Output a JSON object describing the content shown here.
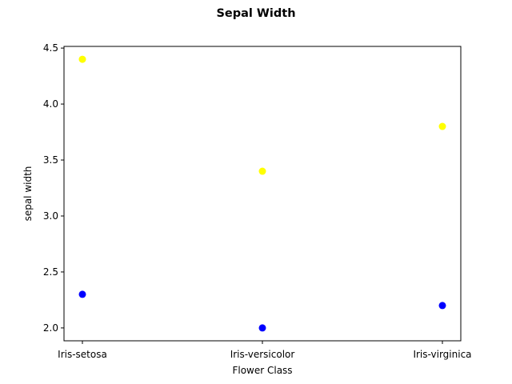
{
  "chart_data": {
    "type": "scatter",
    "title": "Sepal Width",
    "xlabel": "Flower Class",
    "ylabel": "sepal width",
    "categories": [
      "Iris-setosa",
      "Iris-versicolor",
      "Iris-virginica"
    ],
    "ylim": [
      1.885,
      4.515
    ],
    "yticks": [
      "2.0",
      "2.5",
      "3.0",
      "3.5",
      "4.0",
      "4.5"
    ],
    "grid": false,
    "series": [
      {
        "color": "#ffff00",
        "values": [
          4.4,
          3.4,
          3.8
        ]
      },
      {
        "color": "#0000ff",
        "values": [
          2.3,
          2.0,
          2.2
        ]
      }
    ]
  }
}
